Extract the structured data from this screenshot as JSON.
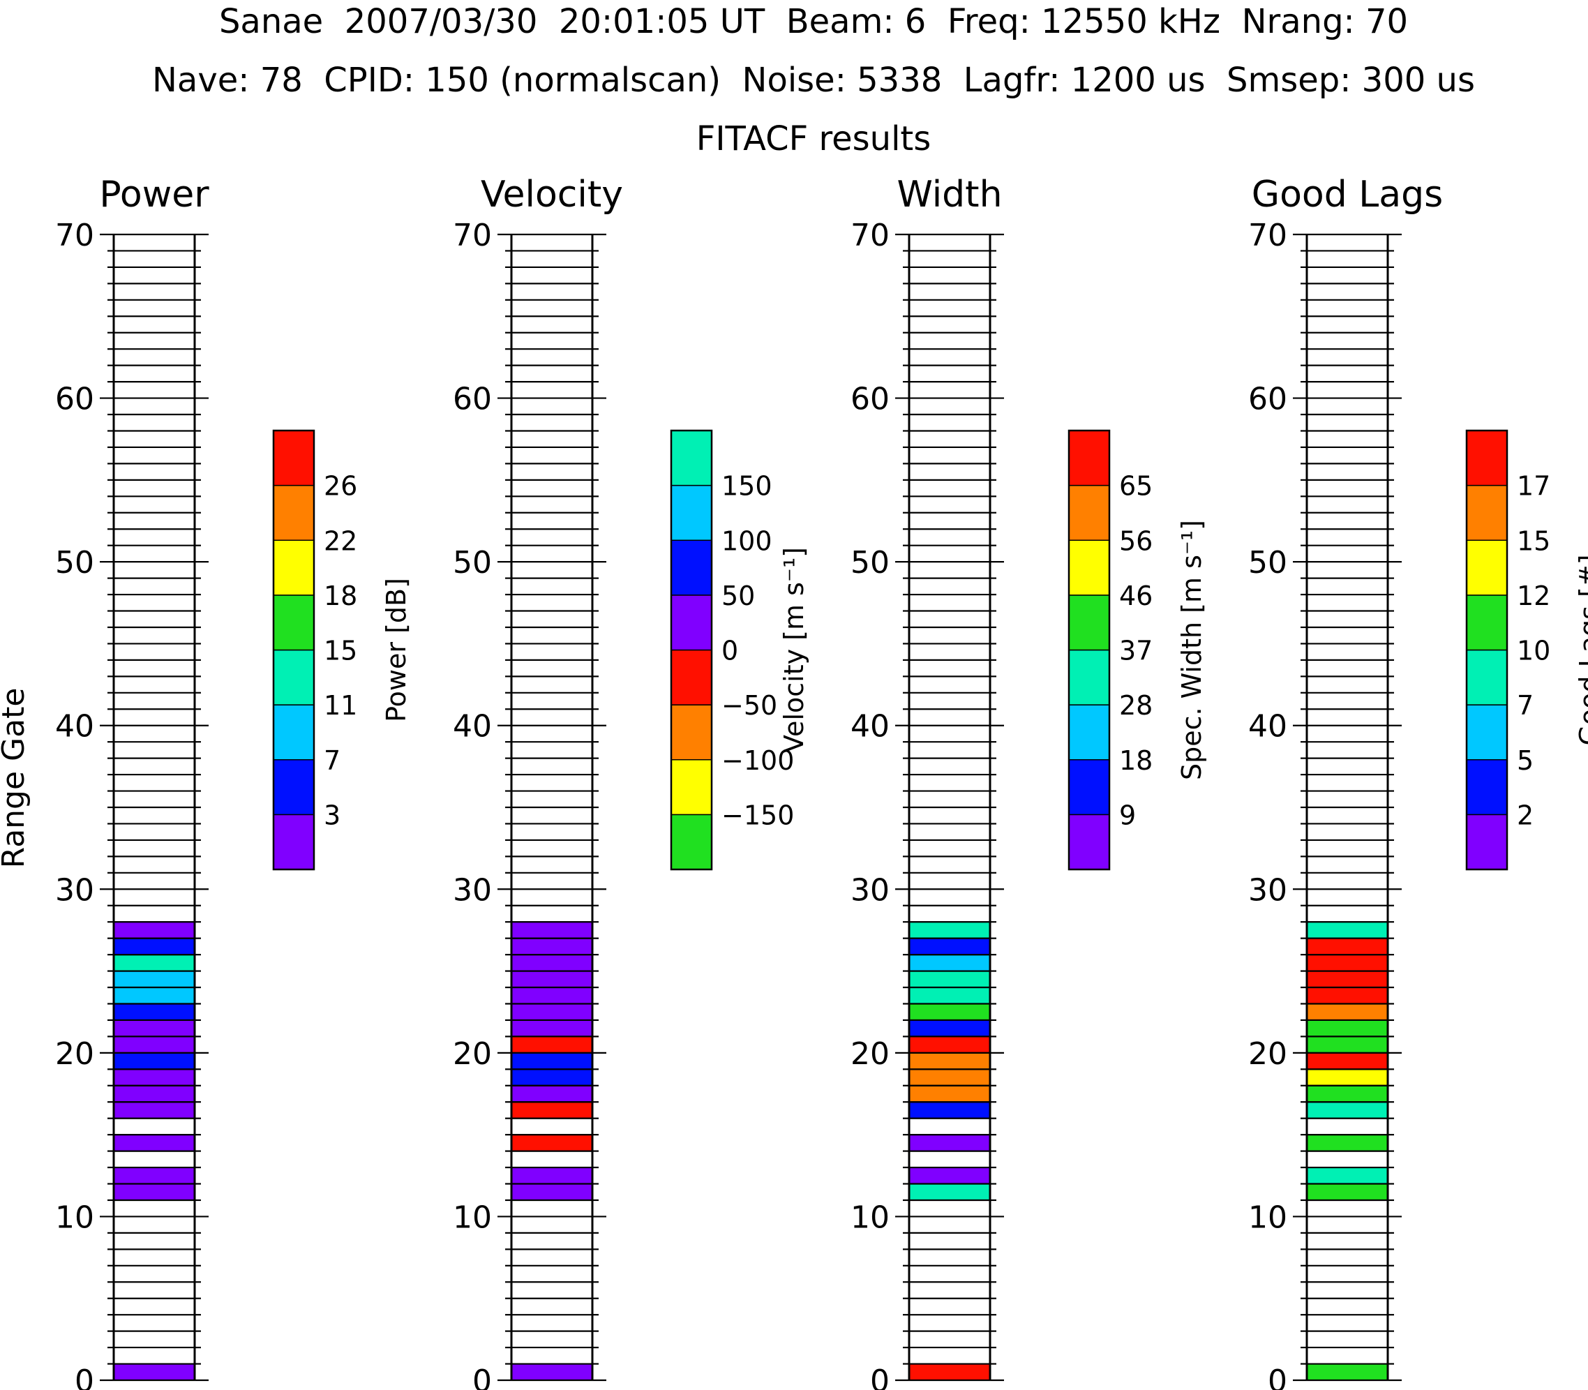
{
  "header": {
    "line1": "Sanae  2007/03/30  20:01:05 UT  Beam: 6  Freq: 12550 kHz  Nrang: 70",
    "line2": "Nave: 78  CPID: 150 (normalscan)  Noise: 5338  Lagfr: 1200 us  Smsep: 300 us",
    "line3": "FITACF results"
  },
  "chart_data": {
    "type": "heatmap",
    "ylabel": "Range Gate",
    "ylim": [
      0,
      70
    ],
    "y_ticks": [
      "0",
      "10",
      "20",
      "30",
      "40",
      "50",
      "60",
      "70"
    ],
    "panels": [
      {
        "title": "Power",
        "cbar_label": "Power [dB]",
        "cbar_ticks": [
          "3",
          "7",
          "11",
          "15",
          "18",
          "22",
          "26"
        ],
        "cbar_colors": [
          "#8000ff",
          "#0010ff",
          "#00c8ff",
          "#00f0b4",
          "#20e020",
          "#ffff00",
          "#ff8000",
          "#ff1000"
        ],
        "cells": [
          {
            "gate": 0,
            "level": 0
          },
          {
            "gate": 11,
            "level": 0
          },
          {
            "gate": 12,
            "level": 0
          },
          {
            "gate": 14,
            "level": 0
          },
          {
            "gate": 16,
            "level": 0
          },
          {
            "gate": 17,
            "level": 0
          },
          {
            "gate": 18,
            "level": 0
          },
          {
            "gate": 19,
            "level": 1
          },
          {
            "gate": 20,
            "level": 0
          },
          {
            "gate": 21,
            "level": 0
          },
          {
            "gate": 22,
            "level": 1
          },
          {
            "gate": 23,
            "level": 2
          },
          {
            "gate": 24,
            "level": 2
          },
          {
            "gate": 25,
            "level": 3
          },
          {
            "gate": 26,
            "level": 1
          },
          {
            "gate": 27,
            "level": 0
          }
        ]
      },
      {
        "title": "Velocity",
        "cbar_label": "Velocity [m s⁻¹]",
        "cbar_ticks": [
          "−150",
          "−100",
          "−50",
          "0",
          "50",
          "100",
          "150"
        ],
        "cbar_colors": [
          "#20e020",
          "#ffff00",
          "#ff8000",
          "#ff1000",
          "#8000ff",
          "#0010ff",
          "#00c8ff",
          "#00f0b4"
        ],
        "cells": [
          {
            "gate": 0,
            "level": 4
          },
          {
            "gate": 11,
            "level": 4
          },
          {
            "gate": 12,
            "level": 4
          },
          {
            "gate": 14,
            "level": 3
          },
          {
            "gate": 16,
            "level": 3
          },
          {
            "gate": 17,
            "level": 4
          },
          {
            "gate": 18,
            "level": 5
          },
          {
            "gate": 19,
            "level": 5
          },
          {
            "gate": 20,
            "level": 3
          },
          {
            "gate": 21,
            "level": 4
          },
          {
            "gate": 22,
            "level": 4
          },
          {
            "gate": 23,
            "level": 4
          },
          {
            "gate": 24,
            "level": 4
          },
          {
            "gate": 25,
            "level": 4
          },
          {
            "gate": 26,
            "level": 4
          },
          {
            "gate": 27,
            "level": 4
          }
        ]
      },
      {
        "title": "Width",
        "cbar_label": "Spec. Width [m s⁻¹]",
        "cbar_ticks": [
          "9",
          "18",
          "28",
          "37",
          "46",
          "56",
          "65"
        ],
        "cbar_colors": [
          "#8000ff",
          "#0010ff",
          "#00c8ff",
          "#00f0b4",
          "#20e020",
          "#ffff00",
          "#ff8000",
          "#ff1000"
        ],
        "cells": [
          {
            "gate": 0,
            "level": 7
          },
          {
            "gate": 11,
            "level": 3
          },
          {
            "gate": 12,
            "level": 0
          },
          {
            "gate": 14,
            "level": 0
          },
          {
            "gate": 16,
            "level": 1
          },
          {
            "gate": 17,
            "level": 6
          },
          {
            "gate": 18,
            "level": 6
          },
          {
            "gate": 19,
            "level": 6
          },
          {
            "gate": 20,
            "level": 7
          },
          {
            "gate": 21,
            "level": 1
          },
          {
            "gate": 22,
            "level": 4
          },
          {
            "gate": 23,
            "level": 3
          },
          {
            "gate": 24,
            "level": 3
          },
          {
            "gate": 25,
            "level": 2
          },
          {
            "gate": 26,
            "level": 1
          },
          {
            "gate": 27,
            "level": 3
          }
        ]
      },
      {
        "title": "Good Lags",
        "cbar_label": "Good Lags [#]",
        "cbar_ticks": [
          "2",
          "5",
          "7",
          "10",
          "12",
          "15",
          "17"
        ],
        "cbar_colors": [
          "#8000ff",
          "#0010ff",
          "#00c8ff",
          "#00f0b4",
          "#20e020",
          "#ffff00",
          "#ff8000",
          "#ff1000"
        ],
        "cells": [
          {
            "gate": 0,
            "level": 4
          },
          {
            "gate": 11,
            "level": 4
          },
          {
            "gate": 12,
            "level": 3
          },
          {
            "gate": 14,
            "level": 4
          },
          {
            "gate": 16,
            "level": 3
          },
          {
            "gate": 17,
            "level": 4
          },
          {
            "gate": 18,
            "level": 5
          },
          {
            "gate": 19,
            "level": 7
          },
          {
            "gate": 20,
            "level": 4
          },
          {
            "gate": 21,
            "level": 4
          },
          {
            "gate": 22,
            "level": 6
          },
          {
            "gate": 23,
            "level": 7
          },
          {
            "gate": 24,
            "level": 7
          },
          {
            "gate": 25,
            "level": 7
          },
          {
            "gate": 26,
            "level": 7
          },
          {
            "gate": 27,
            "level": 3
          }
        ]
      }
    ]
  }
}
